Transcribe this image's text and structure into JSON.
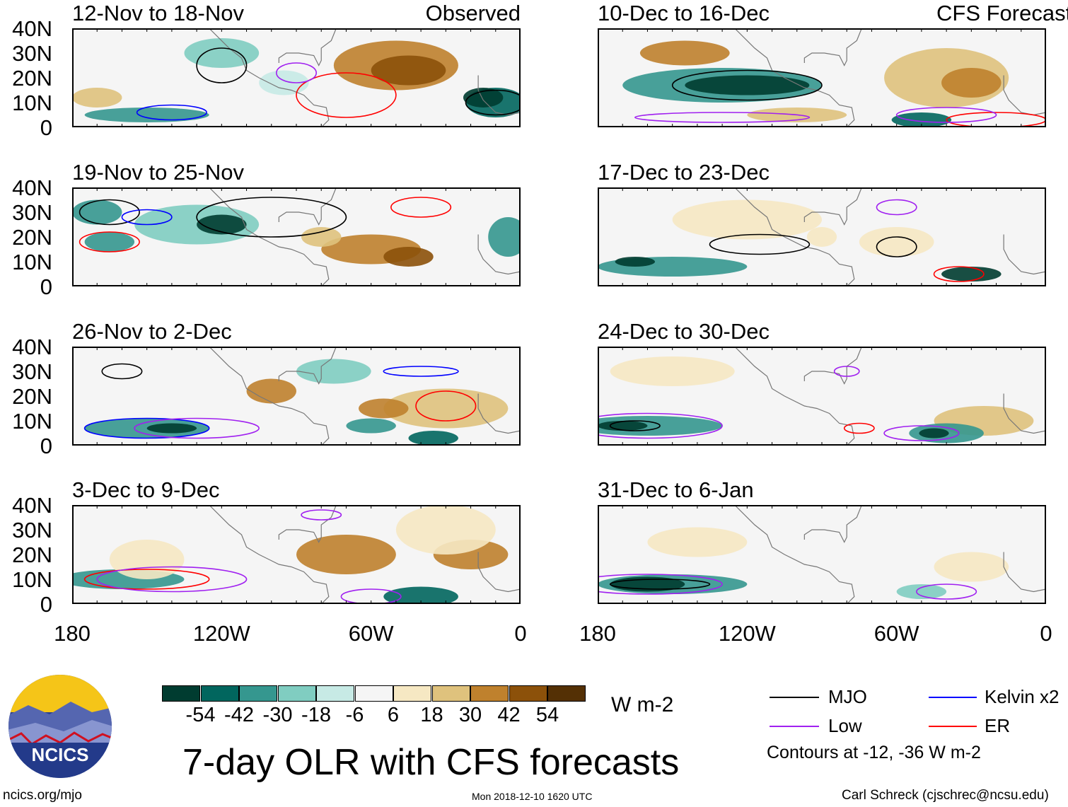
{
  "panels": [
    {
      "title": "12-Nov to 18-Nov",
      "label": "Observed"
    },
    {
      "title": "10-Dec to 16-Dec",
      "label": "CFS Forecast"
    },
    {
      "title": "19-Nov to 25-Nov"
    },
    {
      "title": "17-Dec to 23-Dec"
    },
    {
      "title": "26-Nov to 2-Dec"
    },
    {
      "title": "24-Dec to 30-Dec"
    },
    {
      "title": "3-Dec to 9-Dec"
    },
    {
      "title": "31-Dec to 6-Jan"
    }
  ],
  "y_ticks": [
    "40N",
    "30N",
    "20N",
    "10N",
    "0"
  ],
  "x_ticks": [
    "180",
    "120W",
    "60W",
    "0"
  ],
  "colorbar": {
    "colors": [
      "#003c30",
      "#01665e",
      "#35978f",
      "#80cdc1",
      "#c7eae5",
      "#f5f5f5",
      "#f6e8c3",
      "#dfc27d",
      "#bf812d",
      "#8c510a",
      "#543005"
    ],
    "labels": [
      "-54",
      "-42",
      "-30",
      "-18",
      "-6",
      "6",
      "18",
      "30",
      "42",
      "54"
    ],
    "units": "W m-2"
  },
  "title": "7-day OLR with CFS forecasts",
  "timestamp": "Mon 2018-12-10 1620 UTC",
  "legend": {
    "items": [
      {
        "label": "MJO",
        "color": "#000000"
      },
      {
        "label": "Kelvin x2",
        "color": "#0000ff"
      },
      {
        "label": "Low",
        "color": "#a020f0"
      },
      {
        "label": "ER",
        "color": "#ff0000"
      }
    ],
    "note": "Contours at -12, -36 W m-2"
  },
  "logo": {
    "text": "NCICS"
  },
  "footer": {
    "url": "ncics.org/mjo",
    "author": "Carl Schreck (cjschrec@ncsu.edu)"
  }
}
